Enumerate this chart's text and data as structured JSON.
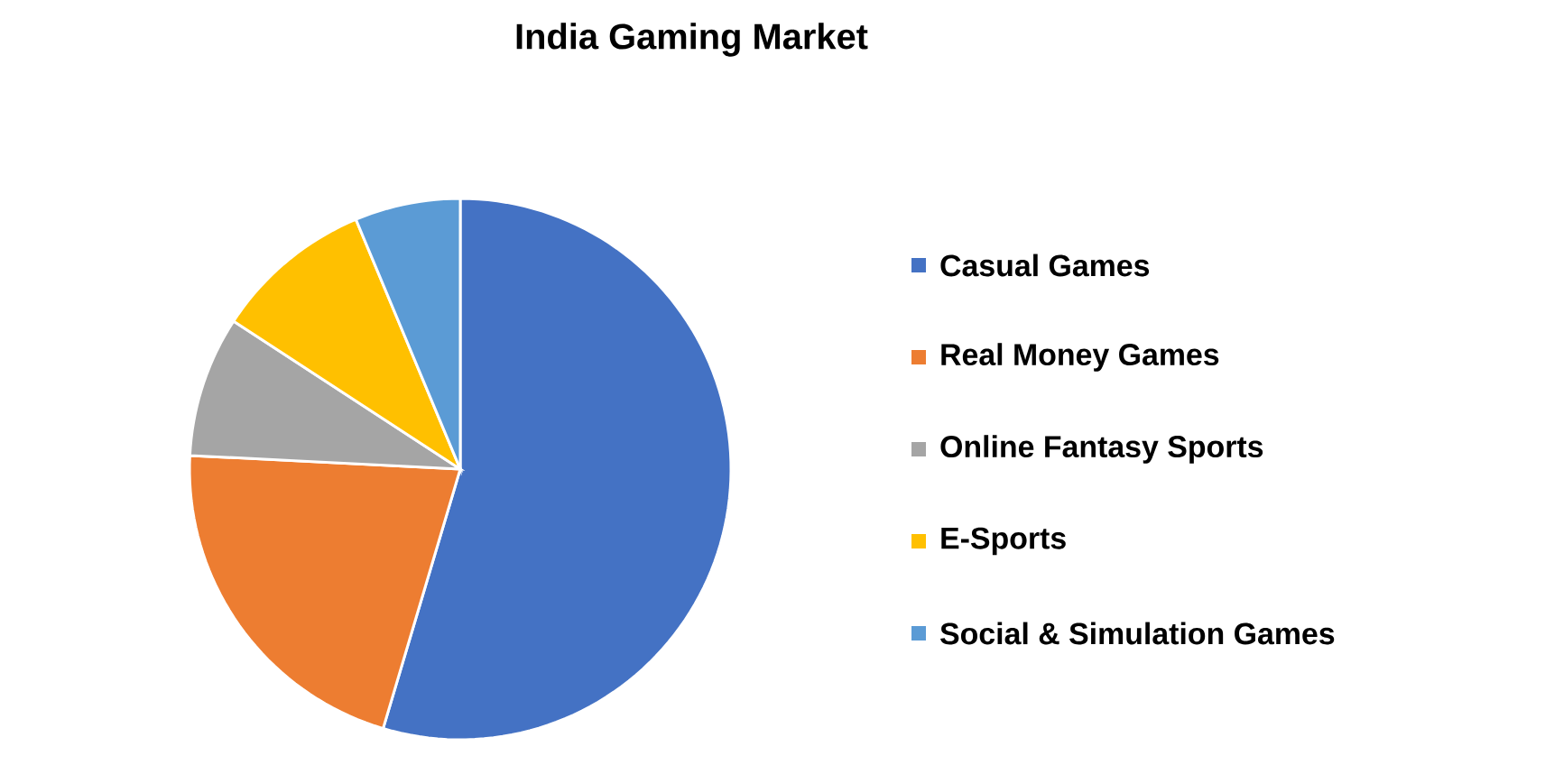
{
  "chart_data": {
    "type": "pie",
    "title": "India Gaming Market",
    "categories": [
      "Casual Games",
      "Real Money Games",
      "Online Fantasy Sports",
      "E-Sports",
      "Social & Simulation Games"
    ],
    "values": [
      54.6,
      21.2,
      8.4,
      9.5,
      6.3
    ],
    "colors": [
      "#4472c4",
      "#ed7d31",
      "#a5a5a5",
      "#ffc000",
      "#5b9bd5"
    ],
    "legend": "right"
  }
}
